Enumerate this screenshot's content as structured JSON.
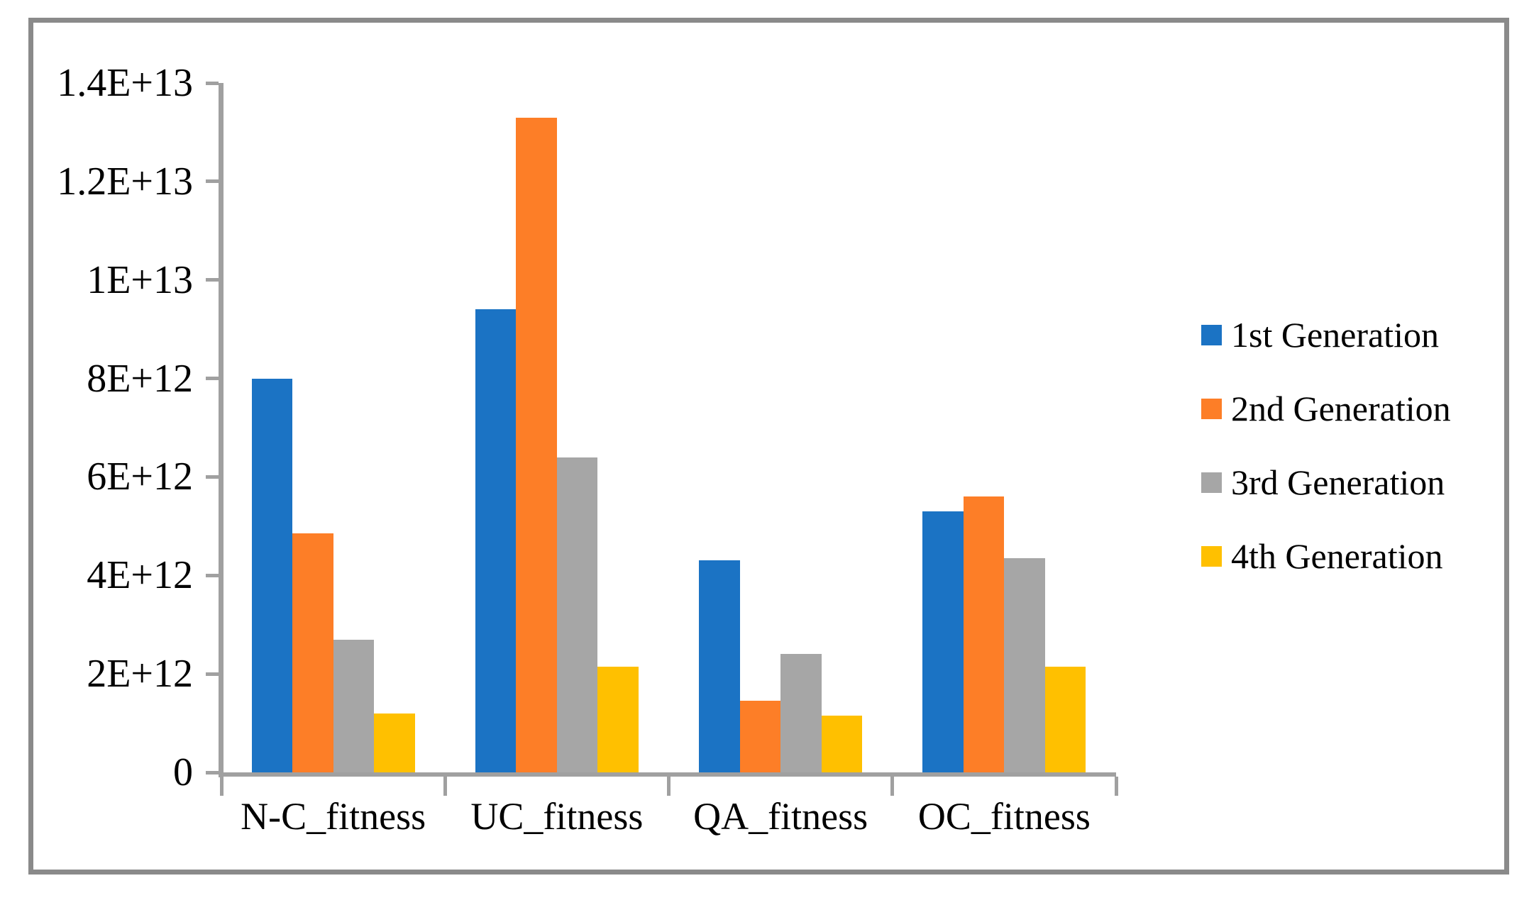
{
  "chart_data": {
    "type": "bar",
    "title": "",
    "xlabel": "",
    "ylabel": "",
    "ylim": [
      0,
      14000000000000
    ],
    "grid": false,
    "legend_position": "right",
    "categories": [
      "N-C_fitness",
      "UC_fitness",
      "QA_fitness",
      "OC_fitness"
    ],
    "series": [
      {
        "name": "1st Generation",
        "color": "#1b73c4",
        "values": [
          8000000000000,
          9400000000000,
          4300000000000,
          5300000000000
        ]
      },
      {
        "name": "2nd Generation",
        "color": "#fd7e27",
        "values": [
          4850000000000,
          13300000000000,
          1450000000000,
          5600000000000
        ]
      },
      {
        "name": "3rd Generation",
        "color": "#a6a6a6",
        "values": [
          2700000000000,
          6400000000000,
          2400000000000,
          4350000000000
        ]
      },
      {
        "name": "4th Generation",
        "color": "#ffc000",
        "values": [
          1200000000000,
          2150000000000,
          1150000000000,
          2150000000000
        ]
      }
    ],
    "y_ticks": [
      {
        "label": "1.4E+13",
        "value": 14000000000000
      },
      {
        "label": "1.2E+13",
        "value": 12000000000000
      },
      {
        "label": "1E+13",
        "value": 10000000000000
      },
      {
        "label": "8E+12",
        "value": 8000000000000
      },
      {
        "label": "6E+12",
        "value": 6000000000000
      },
      {
        "label": "4E+12",
        "value": 4000000000000
      },
      {
        "label": "2E+12",
        "value": 2000000000000
      },
      {
        "label": "0",
        "value": 0
      }
    ],
    "colors": {
      "axis": "#a0a0a0",
      "border": "#8a8a8a",
      "text": "#000000",
      "background": "#ffffff"
    }
  }
}
